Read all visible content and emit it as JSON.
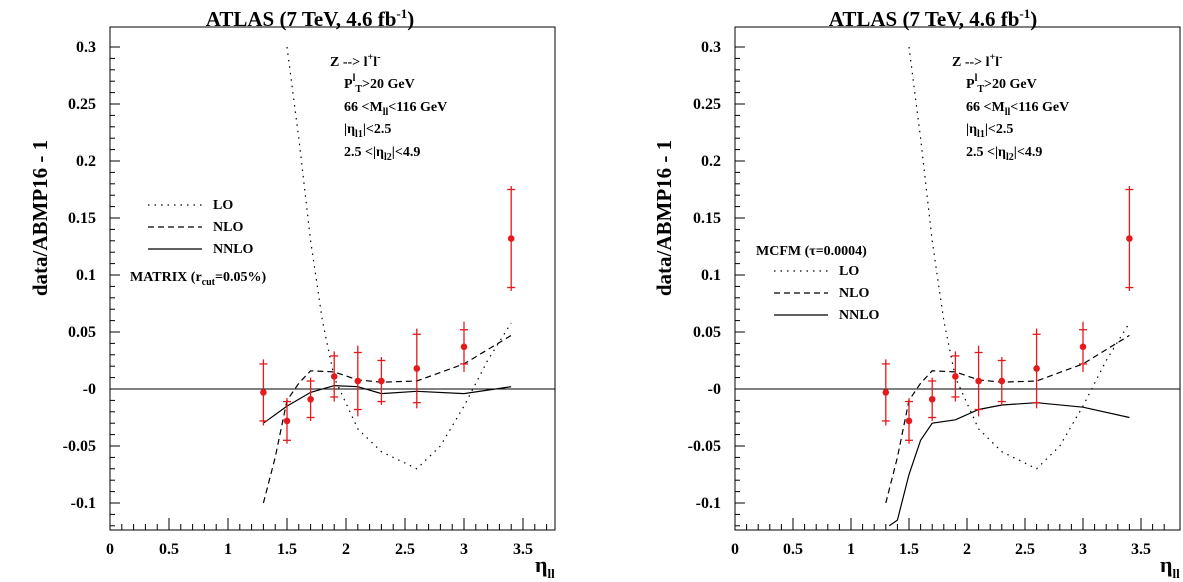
{
  "panels": [
    {
      "title": "ATLAS (7 TeV, 4.6 fb⁻¹)",
      "ylabel": "data/ABMP16 - 1",
      "xlabel": "ηll",
      "cuts": [
        "Z --> l⁺l⁻",
        "PTl>20 GeV",
        "66 <Mll<116 GeV",
        "|ηl1|<2.5",
        "2.5 <|ηl2|<4.9"
      ],
      "legend_header": "",
      "legend_footer": "MATRIX (rcut=0.05%)",
      "legend": [
        "LO",
        "NLO",
        "NNLO"
      ]
    },
    {
      "title": "ATLAS (7 TeV, 4.6 fb⁻¹)",
      "ylabel": "data/ABMP16 - 1",
      "xlabel": "ηll",
      "cuts": [
        "Z --> l⁺l⁻",
        "PTl>20 GeV",
        "66 <Mll<116 GeV",
        "|ηl1|<2.5",
        "2.5 <|ηl2|<4.9"
      ],
      "legend_header": "MCFM (τ=0.0004)",
      "legend_footer": "",
      "legend": [
        "LO",
        "NLO",
        "NNLO"
      ]
    }
  ],
  "chart_data": [
    {
      "type": "line",
      "title": "ATLAS (7 TeV, 4.6 fb-1)",
      "xlabel": "ηll",
      "ylabel": "data/ABMP16 - 1",
      "xlim": [
        0,
        3.8
      ],
      "ylim": [
        -0.12,
        0.3
      ],
      "xticks": [
        "0",
        "0.5",
        "1",
        "1.5",
        "2",
        "2.5",
        "3",
        "3.5"
      ],
      "yticks": [
        "0.3",
        "0.25",
        "0.2",
        "0.15",
        "0.1",
        "0.05",
        "-0",
        "-0.05",
        "-0.1"
      ],
      "data_points": {
        "x": [
          1.3,
          1.5,
          1.7,
          1.9,
          2.1,
          2.3,
          2.6,
          3.0,
          3.4
        ],
        "y": [
          -0.003,
          -0.028,
          -0.009,
          0.011,
          0.007,
          0.007,
          0.018,
          0.037,
          0.132
        ],
        "err_stat": [
          0.025,
          0.017,
          0.016,
          0.018,
          0.025,
          0.018,
          0.03,
          0.015,
          0.043
        ],
        "err_tot": [
          0.029,
          0.02,
          0.019,
          0.022,
          0.031,
          0.021,
          0.035,
          0.022,
          0.046
        ]
      },
      "series": [
        {
          "name": "LO",
          "style": "dotted",
          "x": [
            1.5,
            1.6,
            1.7,
            1.8,
            1.9,
            2.1,
            2.3,
            2.6,
            2.8,
            3.0,
            3.2,
            3.4
          ],
          "y": [
            0.3,
            0.22,
            0.13,
            0.06,
            0.01,
            -0.035,
            -0.055,
            -0.07,
            -0.05,
            -0.015,
            0.025,
            0.058
          ]
        },
        {
          "name": "NLO",
          "style": "dashed",
          "x": [
            1.3,
            1.4,
            1.5,
            1.6,
            1.7,
            1.9,
            2.1,
            2.3,
            2.6,
            3.0,
            3.4
          ],
          "y": [
            -0.1,
            -0.06,
            -0.01,
            0.005,
            0.016,
            0.015,
            0.008,
            0.006,
            0.007,
            0.022,
            0.047
          ]
        },
        {
          "name": "NNLO",
          "style": "solid",
          "x": [
            1.3,
            1.5,
            1.7,
            1.9,
            2.1,
            2.3,
            2.6,
            3.0,
            3.4
          ],
          "y": [
            -0.03,
            -0.015,
            -0.003,
            0.003,
            0.002,
            -0.004,
            -0.002,
            -0.004,
            0.002
          ]
        }
      ],
      "reference_line_y": 0
    },
    {
      "type": "line",
      "title": "ATLAS (7 TeV, 4.6 fb-1)",
      "xlabel": "ηll",
      "ylabel": "data/ABMP16 - 1",
      "xlim": [
        0,
        3.8
      ],
      "ylim": [
        -0.12,
        0.3
      ],
      "xticks": [
        "0",
        "0.5",
        "1",
        "1.5",
        "2",
        "2.5",
        "3",
        "3.5"
      ],
      "yticks": [
        "0.3",
        "0.25",
        "0.2",
        "0.15",
        "0.1",
        "0.05",
        "-0",
        "-0.05",
        "-0.1"
      ],
      "data_points": {
        "x": [
          1.3,
          1.5,
          1.7,
          1.9,
          2.1,
          2.3,
          2.6,
          3.0,
          3.4
        ],
        "y": [
          -0.003,
          -0.028,
          -0.009,
          0.011,
          0.007,
          0.007,
          0.018,
          0.037,
          0.132
        ],
        "err_stat": [
          0.025,
          0.017,
          0.016,
          0.018,
          0.025,
          0.018,
          0.03,
          0.015,
          0.043
        ],
        "err_tot": [
          0.029,
          0.02,
          0.019,
          0.022,
          0.031,
          0.021,
          0.035,
          0.022,
          0.046
        ]
      },
      "series": [
        {
          "name": "LO",
          "style": "dotted",
          "x": [
            1.5,
            1.6,
            1.7,
            1.8,
            1.9,
            2.1,
            2.3,
            2.6,
            2.8,
            3.0,
            3.2,
            3.4
          ],
          "y": [
            0.3,
            0.22,
            0.13,
            0.06,
            0.01,
            -0.035,
            -0.055,
            -0.07,
            -0.05,
            -0.015,
            0.025,
            0.058
          ]
        },
        {
          "name": "NLO",
          "style": "dashed",
          "x": [
            1.3,
            1.4,
            1.5,
            1.6,
            1.7,
            1.9,
            2.1,
            2.3,
            2.6,
            3.0,
            3.4
          ],
          "y": [
            -0.1,
            -0.06,
            -0.01,
            0.005,
            0.016,
            0.015,
            0.008,
            0.006,
            0.007,
            0.022,
            0.047
          ]
        },
        {
          "name": "NNLO",
          "style": "solid",
          "x": [
            1.33,
            1.4,
            1.5,
            1.6,
            1.7,
            1.9,
            2.1,
            2.3,
            2.6,
            3.0,
            3.4
          ],
          "y": [
            -0.12,
            -0.115,
            -0.075,
            -0.045,
            -0.03,
            -0.027,
            -0.018,
            -0.014,
            -0.012,
            -0.016,
            -0.025
          ]
        }
      ],
      "reference_line_y": 0
    }
  ]
}
